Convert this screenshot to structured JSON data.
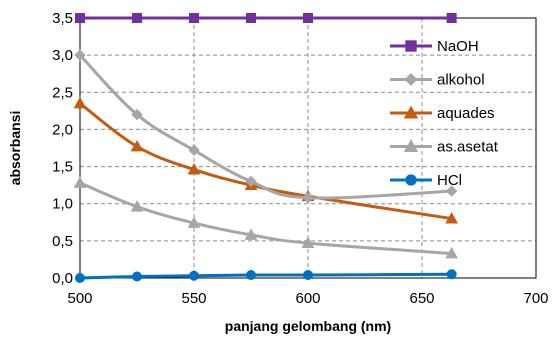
{
  "chart_data": {
    "type": "line",
    "title": "",
    "xlabel": "panjang gelombang (nm)",
    "ylabel": "absorbansi",
    "xlim": [
      500,
      700
    ],
    "ylim": [
      0,
      3.5
    ],
    "x_ticks": [
      500,
      550,
      600,
      650,
      700
    ],
    "y_ticks": [
      0,
      0.5,
      1.0,
      1.5,
      2.0,
      2.5,
      3.0,
      3.5
    ],
    "x_tick_labels": [
      "500",
      "550",
      "600",
      "650",
      "700"
    ],
    "y_tick_labels": [
      "0,0",
      "0,5",
      "1,0",
      "1,5",
      "2,0",
      "2,5",
      "3,0",
      "3,5"
    ],
    "grid": "dashed",
    "legend_position": "right",
    "series": [
      {
        "name": "NaOH",
        "color": "#7030A0",
        "marker": "square",
        "x": [
          500,
          525,
          550,
          575,
          600,
          663
        ],
        "values": [
          3.5,
          3.5,
          3.5,
          3.5,
          3.5,
          3.5
        ]
      },
      {
        "name": "alkohol",
        "color": "#A6A6A6",
        "marker": "diamond",
        "x": [
          500,
          525,
          550,
          575,
          600,
          663
        ],
        "values": [
          3.0,
          2.2,
          1.72,
          1.3,
          1.08,
          1.17
        ]
      },
      {
        "name": "aquades",
        "color": "#C55A11",
        "marker": "triangle",
        "x": [
          500,
          525,
          550,
          575,
          600,
          663
        ],
        "values": [
          2.35,
          1.77,
          1.46,
          1.25,
          1.1,
          0.8
        ]
      },
      {
        "name": "as.asetat",
        "color": "#A6A6A6",
        "marker": "triangle",
        "x": [
          500,
          525,
          550,
          575,
          600,
          663
        ],
        "values": [
          1.28,
          0.96,
          0.74,
          0.58,
          0.47,
          0.33
        ]
      },
      {
        "name": "HCl",
        "color": "#0070C0",
        "marker": "circle",
        "x": [
          500,
          525,
          550,
          575,
          600,
          663
        ],
        "values": [
          0.0,
          0.02,
          0.03,
          0.04,
          0.04,
          0.05
        ]
      }
    ]
  }
}
